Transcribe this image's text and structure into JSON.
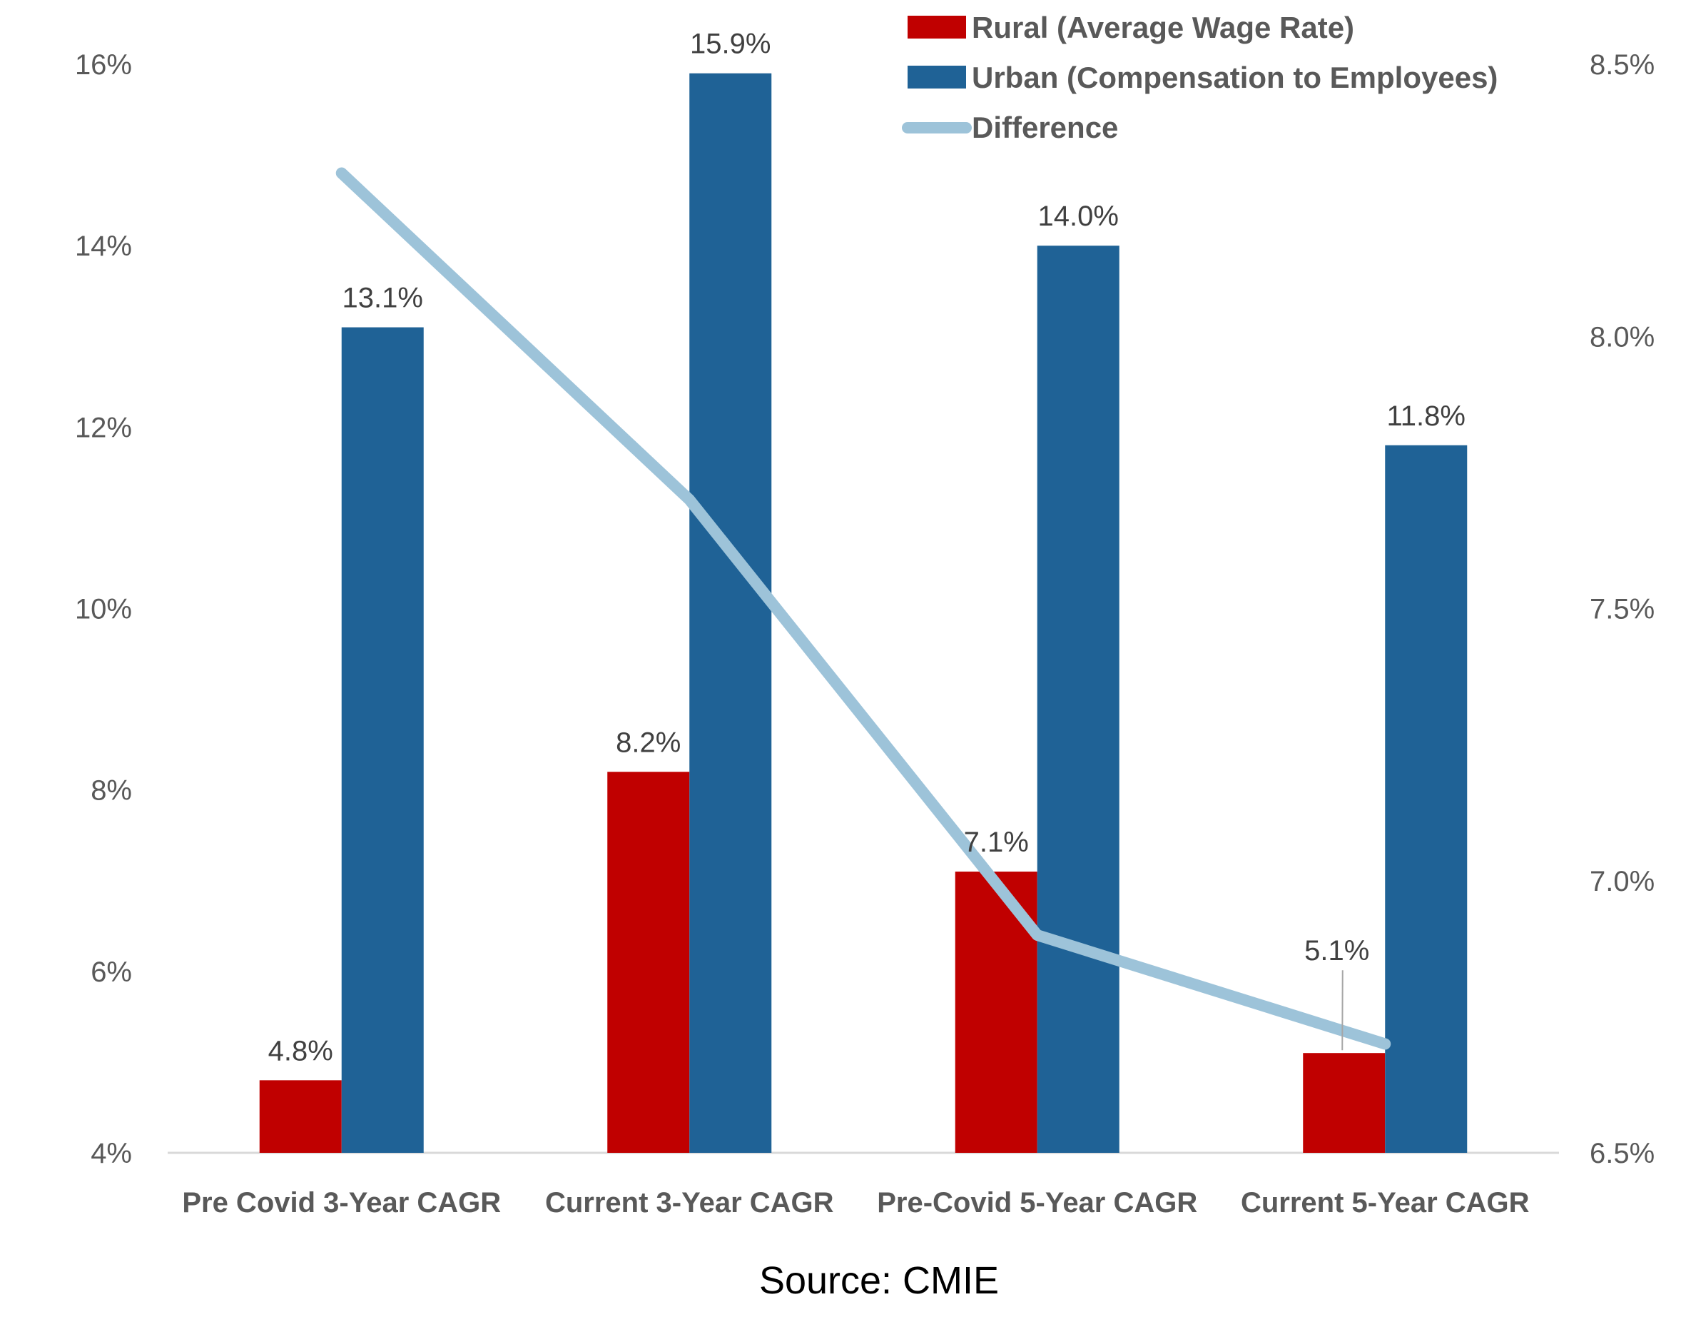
{
  "colors": {
    "rural": "#C00000",
    "urban": "#1F6296",
    "difference": "#9DC3D9",
    "axis_text": "#595959",
    "axis_line": "#D9D9D9"
  },
  "chart_data": {
    "type": "bar",
    "categories": [
      "Pre Covid 3-Year CAGR",
      "Current 3-Year CAGR",
      "Pre-Covid 5-Year CAGR",
      "Current 5-Year CAGR"
    ],
    "series": [
      {
        "name": "Rural (Average Wage Rate)",
        "type": "bar",
        "axis": "left",
        "values": [
          4.8,
          8.2,
          7.1,
          5.1
        ],
        "labels": [
          "4.8%",
          "8.2%",
          "7.1%",
          "5.1%"
        ]
      },
      {
        "name": "Urban (Compensation to Employees)",
        "type": "bar",
        "axis": "left",
        "values": [
          13.1,
          15.9,
          14.0,
          11.8
        ],
        "labels": [
          "13.1%",
          "15.9%",
          "14.0%",
          "11.8%"
        ]
      },
      {
        "name": "Difference",
        "type": "line",
        "axis": "right",
        "values": [
          8.3,
          7.7,
          6.9,
          6.7
        ]
      }
    ],
    "y_left": {
      "min": 4,
      "max": 16,
      "ticks": [
        "4%",
        "6%",
        "8%",
        "10%",
        "12%",
        "14%",
        "16%"
      ]
    },
    "y_right": {
      "min": 6.5,
      "max": 8.5,
      "ticks": [
        "6.5%",
        "7.0%",
        "7.5%",
        "8.0%",
        "8.5%"
      ]
    },
    "legend_position": "top-right",
    "grid": false
  },
  "source": "Source:  CMIE"
}
